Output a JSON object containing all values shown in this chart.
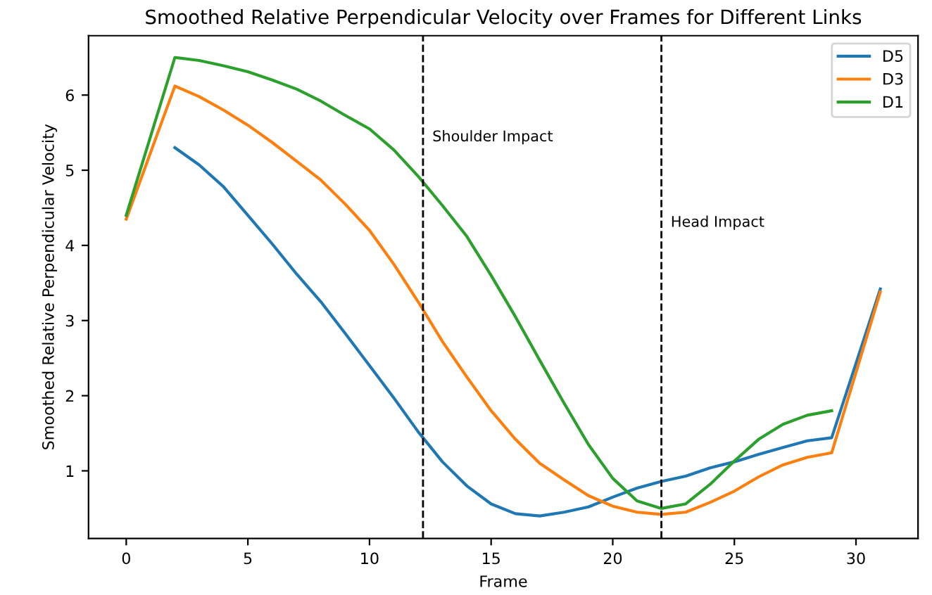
{
  "chart_data": {
    "type": "line",
    "title": "Smoothed Relative Perpendicular Velocity over Frames for Different Links",
    "xlabel": "Frame",
    "ylabel": "Smoothed Relative Perpendicular Velocity",
    "series": [
      {
        "name": "D5",
        "color": "#1f77b4",
        "x": [
          2,
          3,
          4,
          5,
          6,
          7,
          8,
          9,
          10,
          11,
          12,
          13,
          14,
          15,
          16,
          17,
          18,
          19,
          20,
          21,
          22,
          23,
          24,
          25,
          26,
          27,
          28,
          29,
          31
        ],
        "values": [
          5.3,
          5.07,
          4.78,
          4.4,
          4.02,
          3.62,
          3.25,
          2.83,
          2.4,
          1.97,
          1.52,
          1.12,
          0.8,
          0.56,
          0.43,
          0.4,
          0.45,
          0.52,
          0.65,
          0.77,
          0.86,
          0.93,
          1.04,
          1.12,
          1.22,
          1.31,
          1.4,
          1.44,
          3.42
        ]
      },
      {
        "name": "D3",
        "color": "#ff7f0e",
        "x": [
          0,
          2,
          3,
          4,
          5,
          6,
          7,
          8,
          9,
          10,
          11,
          12,
          13,
          14,
          15,
          16,
          17,
          18,
          19,
          20,
          21,
          22,
          23,
          24,
          25,
          26,
          27,
          28,
          29,
          31
        ],
        "values": [
          4.35,
          6.12,
          5.98,
          5.8,
          5.6,
          5.37,
          5.12,
          4.87,
          4.55,
          4.2,
          3.75,
          3.25,
          2.72,
          2.25,
          1.8,
          1.42,
          1.1,
          0.88,
          0.67,
          0.53,
          0.45,
          0.42,
          0.45,
          0.58,
          0.73,
          0.92,
          1.08,
          1.18,
          1.24,
          3.38
        ]
      },
      {
        "name": "D1",
        "color": "#2ca02c",
        "x": [
          0,
          2,
          3,
          4,
          5,
          6,
          7,
          8,
          9,
          10,
          11,
          12,
          13,
          14,
          15,
          16,
          17,
          18,
          19,
          20,
          21,
          22,
          23,
          24,
          25,
          26,
          27,
          28,
          29
        ],
        "values": [
          4.4,
          6.5,
          6.46,
          6.39,
          6.31,
          6.2,
          6.08,
          5.92,
          5.73,
          5.55,
          5.27,
          4.92,
          4.53,
          4.12,
          3.6,
          3.05,
          2.47,
          1.9,
          1.35,
          0.9,
          0.6,
          0.5,
          0.56,
          0.82,
          1.13,
          1.42,
          1.62,
          1.74,
          1.8
        ]
      }
    ],
    "xlim": [
      -1.55,
      32.55
    ],
    "ylim": [
      0.1,
      6.79
    ],
    "xticks": [
      0,
      5,
      10,
      15,
      20,
      25,
      30
    ],
    "yticks": [
      1,
      2,
      3,
      4,
      5,
      6
    ],
    "ref_lines": [
      {
        "axis": "x",
        "value": 12.2,
        "label": "Shoulder Impact",
        "color": "#000000",
        "line_style": "dashed"
      },
      {
        "axis": "x",
        "value": 22,
        "label": "Head Impact",
        "color": "#000000",
        "line_style": "dashed"
      }
    ],
    "legend": "top right",
    "grid": false,
    "marker": "none",
    "line_style": "solid"
  }
}
